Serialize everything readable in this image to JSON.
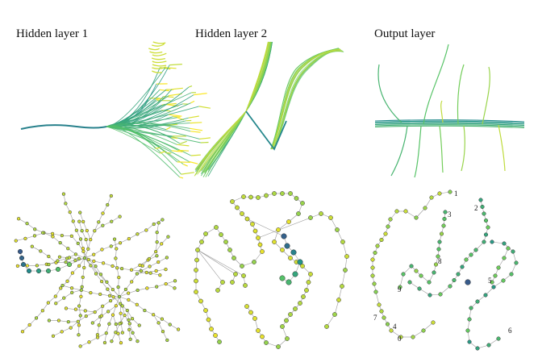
{
  "titles": {
    "hidden_layer_1": "Hidden layer 1",
    "hidden_layer_2": "Hidden layer 2",
    "output_layer": "Output layer"
  },
  "output_graph_labels": [
    "1",
    "2",
    "3",
    "8",
    "5",
    "9",
    "7",
    "4",
    "0",
    "6"
  ],
  "colors": {
    "viridis_dark": "#3b528b",
    "viridis_teal": "#21918c",
    "viridis_green": "#5ec962",
    "viridis_yellow": "#fde725",
    "node_stroke": "#333333",
    "edge": "#999999"
  }
}
